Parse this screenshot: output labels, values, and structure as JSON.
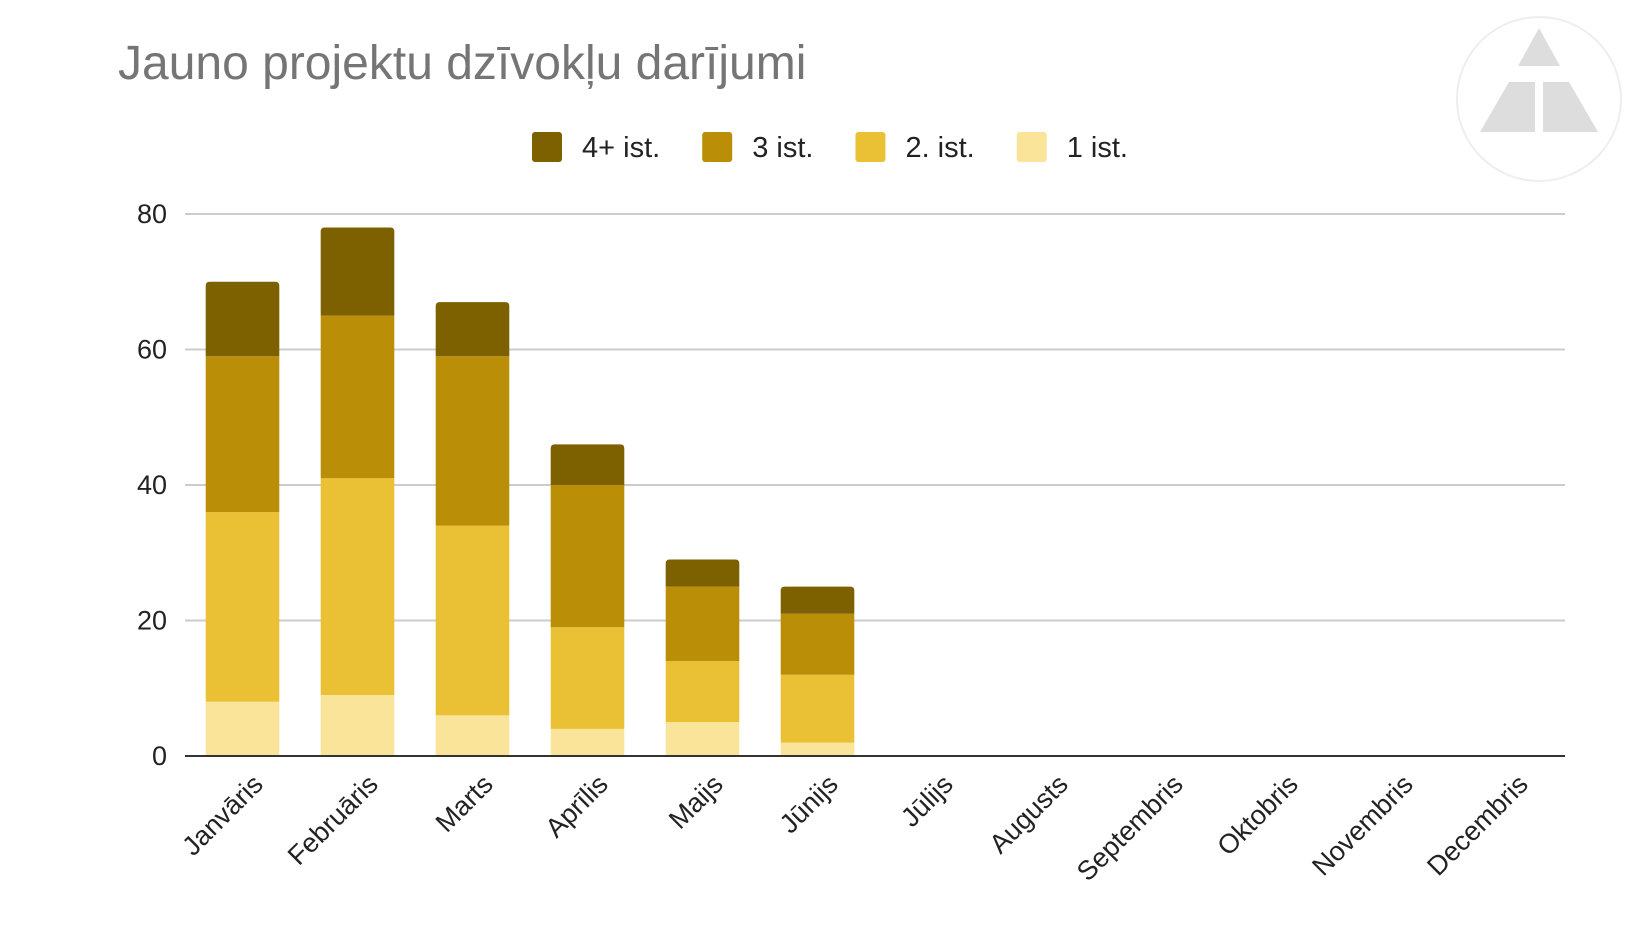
{
  "chart_data": {
    "type": "bar",
    "stacked": true,
    "title": "Jauno projektu dzīvokļu darījumi",
    "xlabel": "",
    "ylabel": "",
    "ylim": [
      0,
      80
    ],
    "yticks": [
      0,
      20,
      40,
      60,
      80
    ],
    "grid": true,
    "legend_position": "top",
    "categories": [
      "Janvāris",
      "Februāris",
      "Marts",
      "Aprīlis",
      "Maijs",
      "Jūnijs",
      "Jūlijs",
      "Augusts",
      "Septembris",
      "Oktobris",
      "Novembris",
      "Decembris"
    ],
    "series": [
      {
        "name": "1 ist.",
        "color": "#F9E49A",
        "values": [
          8,
          9,
          6,
          4,
          5,
          2,
          null,
          null,
          null,
          null,
          null,
          null
        ]
      },
      {
        "name": "2. ist.",
        "color": "#EAC134",
        "values": [
          28,
          32,
          28,
          15,
          9,
          10,
          null,
          null,
          null,
          null,
          null,
          null
        ]
      },
      {
        "name": "3 ist.",
        "color": "#BB8E07",
        "values": [
          23,
          24,
          25,
          21,
          11,
          9,
          null,
          null,
          null,
          null,
          null,
          null
        ]
      },
      {
        "name": "4+ ist.",
        "color": "#7D6000",
        "values": [
          11,
          13,
          8,
          6,
          4,
          4,
          null,
          null,
          null,
          null,
          null,
          null
        ]
      }
    ],
    "legend_order": [
      "4+ ist.",
      "3 ist.",
      "2. ist.",
      "1 ist."
    ]
  },
  "logo": {
    "icon": "triangle-logo-icon",
    "color": "#DDDDDD"
  }
}
